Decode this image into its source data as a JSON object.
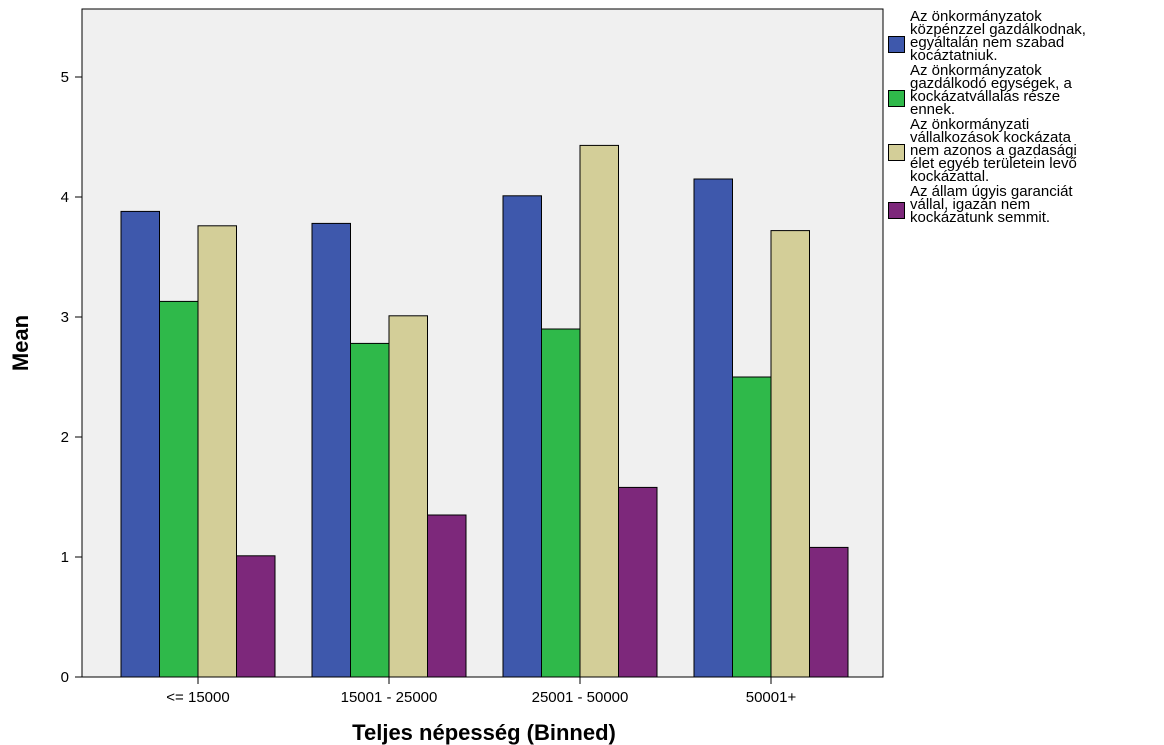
{
  "chart_data": {
    "type": "bar",
    "xlabel": "Teljes népesség (Binned)",
    "ylabel": "Mean",
    "ylim": [
      0,
      5.5
    ],
    "yticks": [
      0,
      1,
      2,
      3,
      4,
      5
    ],
    "categories": [
      "<= 15000",
      "15001 - 25000",
      "25001 - 50000",
      "50001+"
    ],
    "series": [
      {
        "name": "Az önkormányzatok\nközpénzzel gazdálkodnak,\negyáltalán nem szabad\nkocáztatniuk.",
        "color": "#3e58ac",
        "values": [
          3.88,
          3.78,
          4.01,
          4.15
        ]
      },
      {
        "name": "Az önkormányzatok\ngazdálkodó egységek, a\nkockázatvállalás része\nennek.",
        "color": "#2fb94a",
        "values": [
          3.13,
          2.78,
          2.9,
          2.5
        ]
      },
      {
        "name": "Az önkormányzati\nvállalkozások kockázata\nnem azonos a gazdasági\nélet egyéb területein levő\nkockázattal.",
        "color": "#d3ce98",
        "values": [
          3.76,
          3.01,
          4.43,
          3.72
        ]
      },
      {
        "name": "Az állam úgyis garanciát\nvállal, igazán nem\nkockázatunk semmit.",
        "color": "#7d287b",
        "values": [
          1.01,
          1.35,
          1.58,
          1.08
        ]
      }
    ],
    "grid": false,
    "legend": "right",
    "plot_background": "#f0f0f0"
  }
}
